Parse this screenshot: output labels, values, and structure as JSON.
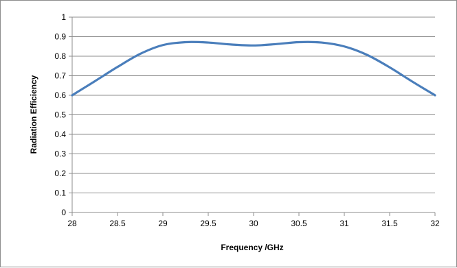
{
  "chart_data": {
    "type": "line",
    "title": "",
    "xlabel": "Frequency /GHz",
    "ylabel": "Radiation Efficiency",
    "xlim": [
      28,
      32
    ],
    "ylim": [
      0,
      1
    ],
    "x_ticks": [
      "28",
      "28.5",
      "29",
      "29.5",
      "30",
      "30.5",
      "31",
      "31.5",
      "32"
    ],
    "y_ticks": [
      "0",
      "0.1",
      "0.2",
      "0.3",
      "0.4",
      "0.5",
      "0.6",
      "0.7",
      "0.8",
      "0.9",
      "1"
    ],
    "grid": true,
    "legend": "none",
    "series": [
      {
        "color": "#4a7ebb",
        "x": [
          28,
          28.25,
          28.5,
          28.75,
          29,
          29.25,
          29.5,
          29.75,
          30,
          30.25,
          30.5,
          30.75,
          31,
          31.25,
          31.5,
          31.75,
          32
        ],
        "y": [
          0.6,
          0.672,
          0.745,
          0.812,
          0.857,
          0.872,
          0.87,
          0.86,
          0.855,
          0.862,
          0.872,
          0.87,
          0.85,
          0.807,
          0.743,
          0.67,
          0.6
        ]
      }
    ]
  }
}
